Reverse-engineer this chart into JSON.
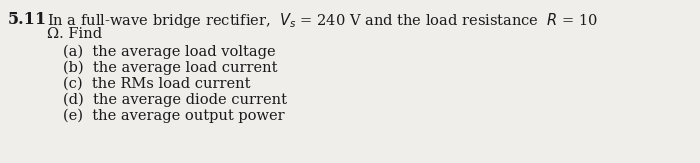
{
  "problem_number": "5.11",
  "line1": "In a full-wave bridge rectifier,  $V_s$ = 240 V and the load resistance  $R$ = 10",
  "line2": "Ω. Find",
  "items": [
    "(a)  the average load voltage",
    "(b)  the average load current",
    "(c)  the RMs load current",
    "(d)  the average diode current",
    "(e)  the average output power"
  ],
  "background_color": "#f0eeeb",
  "text_color": "#1a1a1a",
  "font_size": 10.5,
  "bold_size": 11.5,
  "fig_width": 7.0,
  "fig_height": 1.63,
  "dpi": 100
}
